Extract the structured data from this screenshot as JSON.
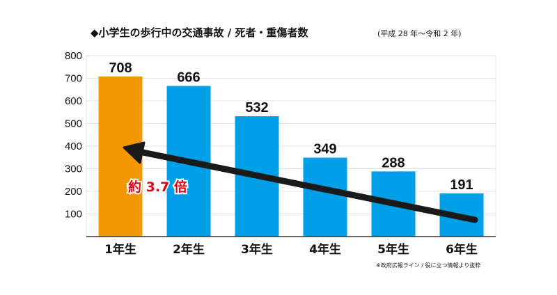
{
  "chart_data": {
    "type": "bar",
    "title": "◆小学生の歩行中の交通事故 / 死者・重傷者数",
    "subtitle": "(平成 28 年〜令和 2 年)",
    "categories": [
      "1年生",
      "2年生",
      "3年生",
      "4年生",
      "5年生",
      "6年生"
    ],
    "values": [
      708,
      666,
      532,
      349,
      288,
      191
    ],
    "y_ticks": [
      "100",
      "200",
      "300",
      "400",
      "500",
      "600",
      "700",
      "800"
    ],
    "ylim": [
      0,
      800
    ],
    "grid": true,
    "highlight_index": 0,
    "annotation": "約 3.7 倍",
    "source": "※政府広報ライン / 役に立つ情報より抜粋"
  },
  "colors": {
    "highlight_bar": "#f39800",
    "bar": "#00a0e9",
    "highlight_text": "#e60012",
    "arrow": "#1a1a1a",
    "grid": "#e3e3e3",
    "axis": "#333333"
  }
}
